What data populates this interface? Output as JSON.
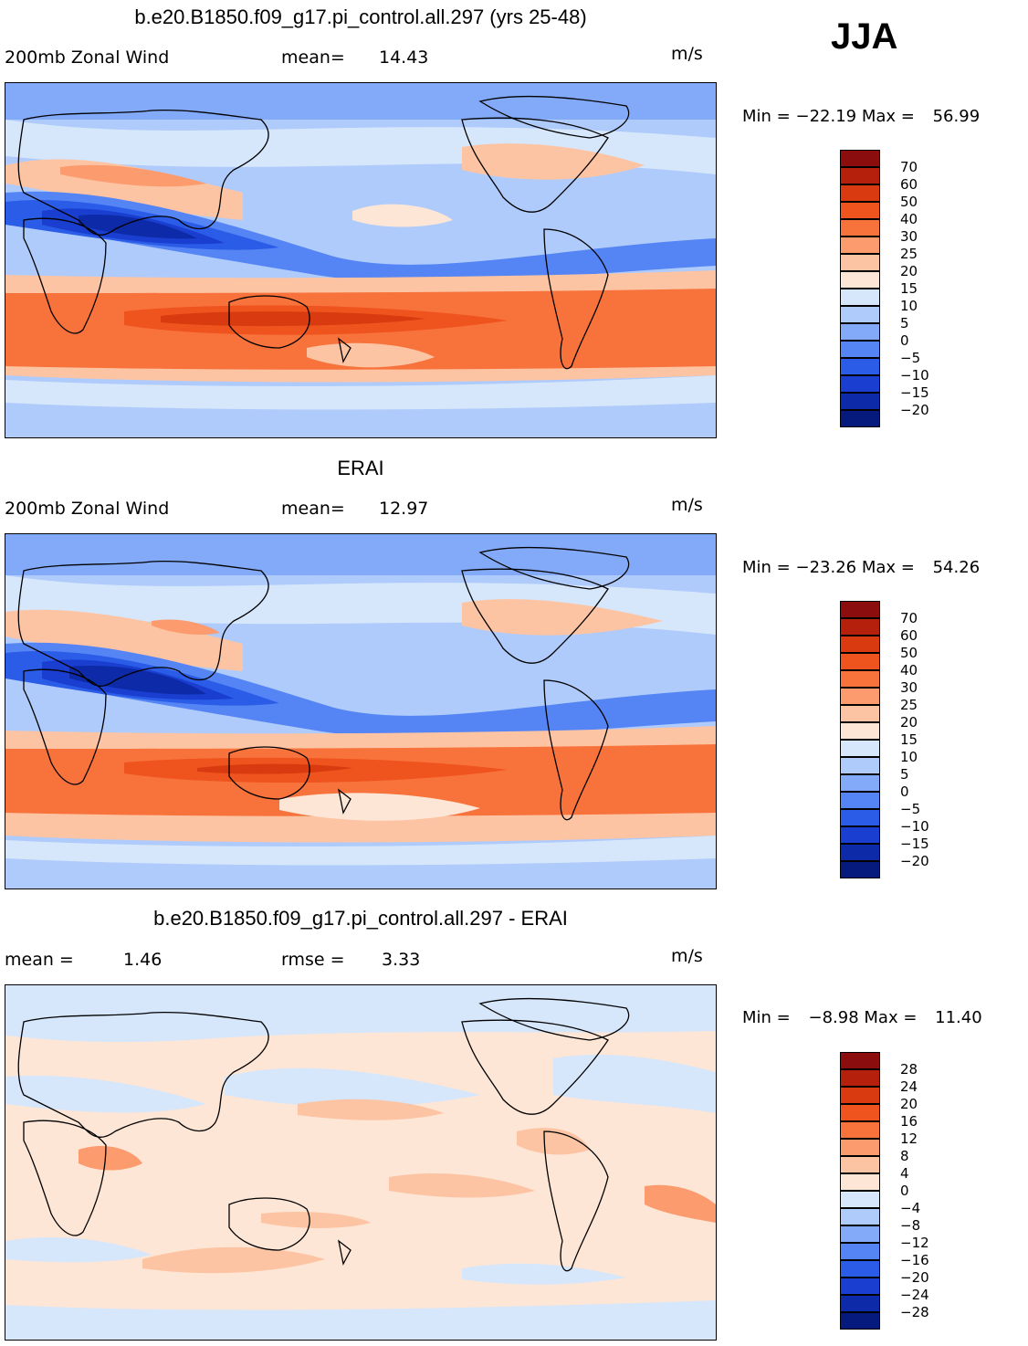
{
  "season": "JJA",
  "panels": [
    {
      "id": "model",
      "title": "b.e20.B1850.f09_g17.pi_control.all.297 (yrs 25-48)",
      "left_label": "200mb Zonal Wind",
      "stat_label": "mean=",
      "stat_value": "14.43",
      "units": "m/s",
      "min_label": "Min =",
      "min_value": "−22.19",
      "max_label": "Max =",
      "max_value": "56.99",
      "colorbar_labels": [
        "70",
        "60",
        "50",
        "40",
        "30",
        "25",
        "20",
        "15",
        "10",
        "5",
        "0",
        "−5",
        "−10",
        "−15",
        "−20"
      ],
      "colors": [
        "#8b0d0d",
        "#b5200c",
        "#d93a0f",
        "#f0541e",
        "#f8733c",
        "#fb9b6e",
        "#fdc4a4",
        "#fde6d6",
        "#d6e6fb",
        "#afcbfb",
        "#83aaf8",
        "#5585f4",
        "#2a5ce8",
        "#1a3fd0",
        "#0d2aa8",
        "#061a7e"
      ]
    },
    {
      "id": "obs",
      "title": "ERAI",
      "left_label": "200mb Zonal Wind",
      "stat_label": "mean=",
      "stat_value": "12.97",
      "units": "m/s",
      "min_label": "Min =",
      "min_value": "−23.26",
      "max_label": "Max =",
      "max_value": "54.26",
      "colorbar_labels": [
        "70",
        "60",
        "50",
        "40",
        "30",
        "25",
        "20",
        "15",
        "10",
        "5",
        "0",
        "−5",
        "−10",
        "−15",
        "−20"
      ],
      "colors": [
        "#8b0d0d",
        "#b5200c",
        "#d93a0f",
        "#f0541e",
        "#f8733c",
        "#fb9b6e",
        "#fdc4a4",
        "#fde6d6",
        "#d6e6fb",
        "#afcbfb",
        "#83aaf8",
        "#5585f4",
        "#2a5ce8",
        "#1a3fd0",
        "#0d2aa8",
        "#061a7e"
      ]
    },
    {
      "id": "diff",
      "title": "b.e20.B1850.f09_g17.pi_control.all.297 - ERAI",
      "left_label": "mean =",
      "left_value": "1.46",
      "stat_label": "rmse =",
      "stat_value": "3.33",
      "units": "m/s",
      "min_label": "Min =",
      "min_value": "−8.98",
      "max_label": "Max =",
      "max_value": "11.40",
      "colorbar_labels": [
        "28",
        "24",
        "20",
        "16",
        "12",
        "8",
        "4",
        "0",
        "−4",
        "−8",
        "−12",
        "−16",
        "−20",
        "−24",
        "−28"
      ],
      "colors": [
        "#8b0d0d",
        "#b5200c",
        "#d93a0f",
        "#f0541e",
        "#f8733c",
        "#fb9b6e",
        "#fdc4a4",
        "#fde6d6",
        "#d6e6fb",
        "#afcbfb",
        "#83aaf8",
        "#5585f4",
        "#2a5ce8",
        "#1a3fd0",
        "#0d2aa8",
        "#061a7e"
      ]
    }
  ]
}
